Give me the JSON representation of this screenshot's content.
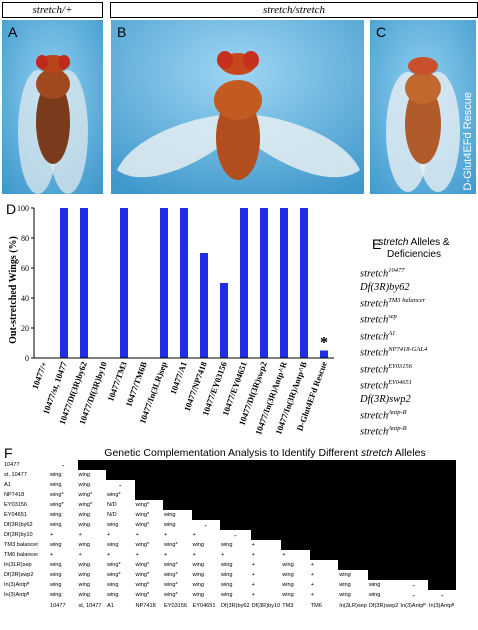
{
  "figure": {
    "header_left": "stretch/+",
    "header_right": "stretch/stretch",
    "panels": {
      "a": "A",
      "b": "B",
      "c": "C",
      "d": "D",
      "e": "E",
      "f": "F"
    },
    "rescue_label": "D-Glut4EFd Rescue",
    "colors": {
      "sky": "#5db0dc",
      "bar": "#1f2ee6"
    }
  },
  "chart_data": {
    "type": "bar",
    "ylabel": "Out-stretched Wings (%)",
    "ylim": [
      0,
      100
    ],
    "yticks": [
      0,
      20,
      40,
      60,
      80,
      100
    ],
    "categories": [
      "10477/+",
      "10477/st, 10477",
      "10477/Df(3R)by62",
      "10477/Df(3R)by10",
      "10477/TM3",
      "10477/TM6B",
      "10477/In(3LR)sep",
      "10477/A1",
      "10477/NP7418",
      "10477/EY03156",
      "10477/EY04651",
      "10477/Df(3R)swp2",
      "10477/In(3R)Antp^R",
      "10477/In(3R)Antp^B",
      "D-Glut4EFd Rescue"
    ],
    "values": [
      0,
      100,
      100,
      0,
      100,
      0,
      100,
      100,
      70,
      50,
      100,
      100,
      100,
      100,
      5
    ],
    "annotation": "*",
    "bar_color": "#1f2ee6"
  },
  "panelE": {
    "title_word": "stretch",
    "title_rest_1": "Alleles &",
    "title_rest_2": "Deficiencies",
    "items": [
      {
        "base": "stretch",
        "sup": "10477"
      },
      {
        "base": "Df(3R)by62",
        "sup": ""
      },
      {
        "base": "stretch",
        "sup": "TM3 balancer"
      },
      {
        "base": "stretch",
        "sup": "sep"
      },
      {
        "base": "stretch",
        "sup": "A1"
      },
      {
        "base": "stretch",
        "sup": "NP7418-GAL4"
      },
      {
        "base": "stretch",
        "sup": "EY03156"
      },
      {
        "base": "stretch",
        "sup": "EY04651"
      },
      {
        "base": "Df(3R)swp2",
        "sup": ""
      },
      {
        "base": "stretch",
        "sup": "Antp-R"
      },
      {
        "base": "stretch",
        "sup": "Antp-B"
      }
    ]
  },
  "panelF": {
    "title_pre": "Genetic Complementation Analysis to Identify Different ",
    "title_italic": "stretch",
    "title_post": " Alleles",
    "columns": [
      "10477",
      "st, 10477",
      "A1",
      "NP7418",
      "EY03156",
      "EY04651",
      "Df(3R)by62",
      "Df(3R)by10",
      "TM3",
      "TM6",
      "In(3LR)sep",
      "Df(3R)swp2",
      "In(3)Antpᴿ",
      "In(3)Antpᴮ"
    ],
    "rows": [
      {
        "label": "10477",
        "cells": [
          "-"
        ]
      },
      {
        "label": "st, 10477",
        "cells": [
          "wing",
          "wing"
        ]
      },
      {
        "label": "A1",
        "cells": [
          "wing",
          "wing",
          "-"
        ]
      },
      {
        "label": "NP7418",
        "cells": [
          "wing*",
          "wing*",
          "wing*"
        ]
      },
      {
        "label": "EY03156",
        "cells": [
          "wing*",
          "wing*",
          "N/D",
          "wing*"
        ]
      },
      {
        "label": "EY04651",
        "cells": [
          "wing",
          "wing",
          "N/D",
          "wing*",
          "wing"
        ]
      },
      {
        "label": "Df(3R)by62",
        "cells": [
          "wing",
          "wing",
          "wing",
          "wing*",
          "wing",
          "-"
        ]
      },
      {
        "label": "Df(3R)by10",
        "cells": [
          "+",
          "+",
          "+",
          "+",
          "+",
          "+",
          "-"
        ]
      },
      {
        "label": "TM3 balancer",
        "cells": [
          "wing",
          "wing",
          "wing",
          "wing*",
          "wing*",
          "wing",
          "wing",
          "+"
        ]
      },
      {
        "label": "TM6 balancer",
        "cells": [
          "+",
          "+",
          "+",
          "+",
          "+",
          "+",
          "+",
          "+",
          "+"
        ]
      },
      {
        "label": "In(3LR)sep",
        "cells": [
          "wing",
          "wing",
          "wing*",
          "wing*",
          "wing*",
          "wing",
          "wing",
          "+",
          "wing",
          "+"
        ]
      },
      {
        "label": "Df(3R)swp2",
        "cells": [
          "wing",
          "wing",
          "wing*",
          "wing*",
          "wing*",
          "wing",
          "wing",
          "+",
          "wing",
          "+",
          "wing"
        ]
      },
      {
        "label": "In(3)Antpᴿ",
        "cells": [
          "wing",
          "wing",
          "wing",
          "wing*",
          "wing*",
          "wing",
          "wing",
          "+",
          "wing",
          "+",
          "wing",
          "wing",
          "-"
        ]
      },
      {
        "label": "In(3)Antpᴮ",
        "cells": [
          "wing",
          "wing",
          "wing",
          "wing*",
          "wing*",
          "wing",
          "wing",
          "+",
          "wing",
          "+",
          "wing",
          "wing",
          "-",
          "-"
        ]
      }
    ]
  }
}
